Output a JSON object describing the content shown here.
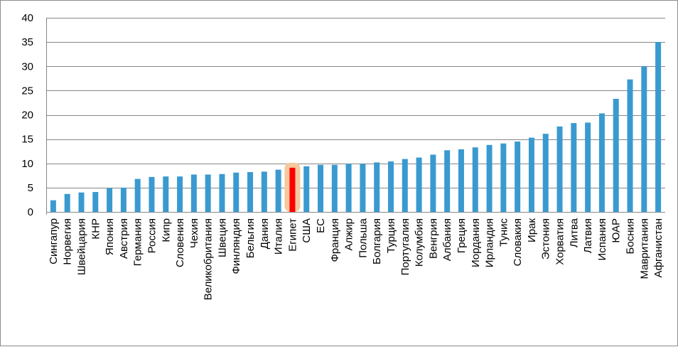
{
  "chart_data": {
    "type": "bar",
    "title": "",
    "xlabel": "",
    "ylabel": "",
    "ylim": [
      0,
      40
    ],
    "yticks": [
      0,
      5,
      10,
      15,
      20,
      25,
      30,
      35,
      40
    ],
    "grid": true,
    "legend": "none",
    "colors": {
      "bar": "#3a9ad0",
      "highlight_bar": "#ff0000",
      "highlight_glow": "#f3c99d",
      "grid": "#878787"
    },
    "highlight_category": "Египет",
    "categories": [
      "Сингапур",
      "Норвегия",
      "Швейцария",
      "КНР",
      "Япония",
      "Австрия",
      "Германия",
      "Россия",
      "Кипр",
      "Словения",
      "Чехия",
      "Великобритания",
      "Швеция",
      "Финляндия",
      "Бельгия",
      "Дания",
      "Италия",
      "Египет",
      "США",
      "ЕС",
      "Франция",
      "Алжир",
      "Польша",
      "Болгария",
      "Турция",
      "Португалия",
      "Колумбия",
      "Венгрия",
      "Албания",
      "Греция",
      "Иордания",
      "Ирландия",
      "Тунис",
      "Словакия",
      "Ирак",
      "Эстония",
      "Хорватия",
      "Литва",
      "Латвия",
      "Испания",
      "ЮАР",
      "Босния",
      "Мавритания",
      "Афганистан"
    ],
    "values": [
      2.4,
      3.7,
      4.0,
      4.1,
      4.9,
      5.0,
      6.8,
      7.2,
      7.3,
      7.3,
      7.7,
      7.7,
      7.8,
      8.1,
      8.2,
      8.3,
      8.7,
      9.1,
      9.4,
      9.7,
      9.7,
      9.9,
      9.9,
      10.2,
      10.4,
      10.9,
      11.2,
      11.8,
      12.7,
      12.9,
      13.3,
      13.8,
      14.1,
      14.5,
      15.3,
      16.1,
      17.6,
      18.3,
      18.4,
      20.3,
      23.3,
      27.3,
      30.0,
      35.0
    ]
  }
}
